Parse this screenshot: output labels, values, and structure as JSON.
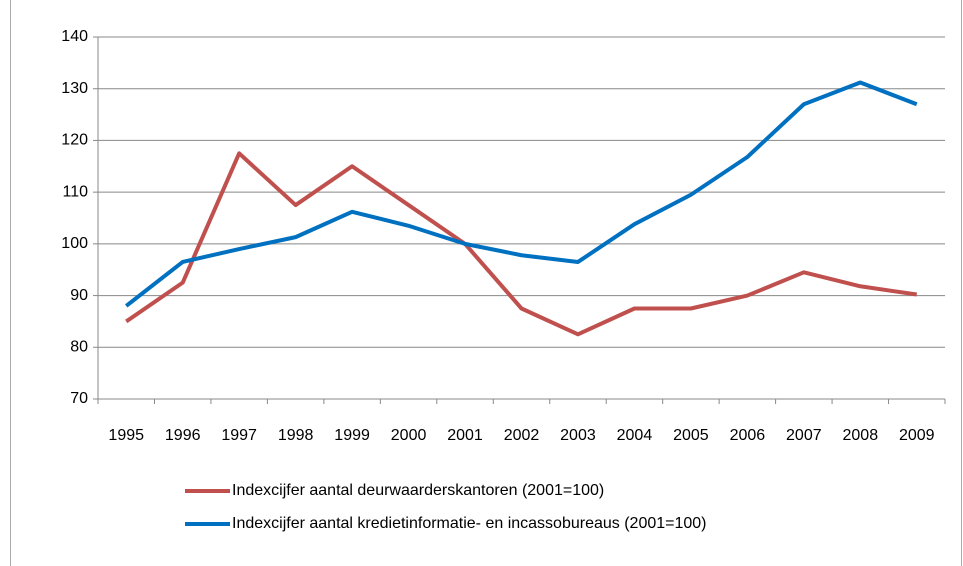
{
  "chart_data": {
    "type": "line",
    "categories": [
      "1995",
      "1996",
      "1997",
      "1998",
      "1999",
      "2000",
      "2001",
      "2002",
      "2003",
      "2004",
      "2005",
      "2006",
      "2007",
      "2008",
      "2009"
    ],
    "series": [
      {
        "name": "Indexcijfer aantal deurwaarderskantoren  (2001=100)",
        "color": "#c0504d",
        "values": [
          85,
          92.5,
          117.5,
          107.5,
          115,
          107.5,
          100,
          87.5,
          82.5,
          87.5,
          87.5,
          90,
          94.5,
          91.8,
          90.2
        ]
      },
      {
        "name": "Indexcijfer aantal kredietinformatie- en incassobureaus (2001=100)",
        "color": "#0070c0",
        "values": [
          88,
          96.5,
          99,
          101.3,
          106.2,
          103.5,
          100,
          97.8,
          96.5,
          103.8,
          109.5,
          116.8,
          127,
          131.2,
          127
        ]
      }
    ],
    "ylim": [
      70,
      140
    ],
    "yticks": [
      70,
      80,
      90,
      100,
      110,
      120,
      130,
      140
    ],
    "grid": true
  }
}
